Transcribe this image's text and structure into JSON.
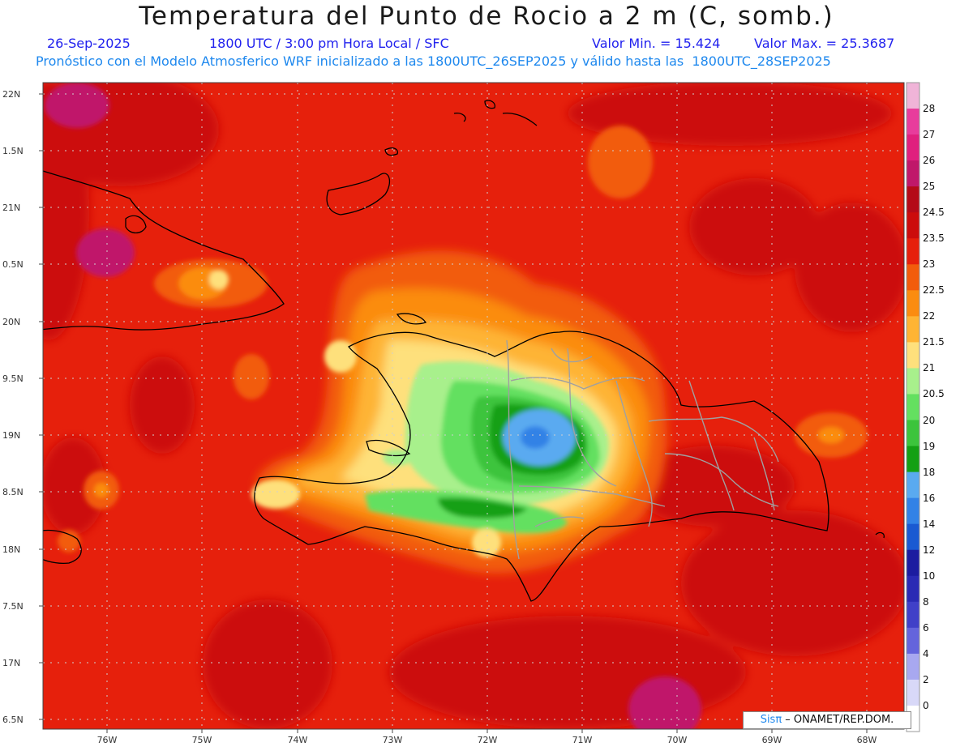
{
  "header": {
    "title": "Temperatura del Punto de Rocio a 2 m (C, somb.)",
    "date": "26-Sep-2025",
    "time": "1800 UTC / 3:00 pm Hora Local / SFC",
    "min_value": "Valor Min. = 15.424",
    "max_value": "Valor Max. = 25.3687",
    "forecast_note": "Pronóstico con el Modelo Atmosferico WRF inicializado a las 1800UTC_26SEP2025 y válido hasta las  1800UTC_28SEP2025"
  },
  "axes": {
    "lat_labels": [
      "22N",
      "1.5N",
      "21N",
      "0.5N",
      "20N",
      "9.5N",
      "19N",
      "8.5N",
      "18N",
      "7.5N",
      "17N",
      "6.5N"
    ],
    "lon_labels": [
      "76W",
      "75W",
      "74W",
      "73W",
      "72W",
      "71W",
      "70W",
      "69W",
      "68W"
    ]
  },
  "legend": {
    "levels": [
      "28",
      "27",
      "26",
      "25",
      "24.5",
      "23.5",
      "23",
      "22.5",
      "22",
      "21.5",
      "21",
      "20.5",
      "20",
      "19",
      "18",
      "16",
      "14",
      "12",
      "10",
      "8",
      "6",
      "4",
      "2",
      "0"
    ],
    "colors": [
      "#f0b4d8",
      "#e83c9c",
      "#e0207e",
      "#c0186a",
      "#b40a18",
      "#cc0c0c",
      "#e6200c",
      "#f25c0c",
      "#fb8c10",
      "#feb434",
      "#fee07c",
      "#a8f08c",
      "#64e060",
      "#3cc43c",
      "#14a014",
      "#5aaaf0",
      "#3282e6",
      "#1a5ad2",
      "#1c1ca0",
      "#2a2ab4",
      "#4040c8",
      "#6464dc",
      "#a8a8f0",
      "#d8d8f8",
      "#ffffff"
    ]
  },
  "watermark": {
    "brand": "Sisπ",
    "text": " – ONAMET/REP.DOM."
  }
}
